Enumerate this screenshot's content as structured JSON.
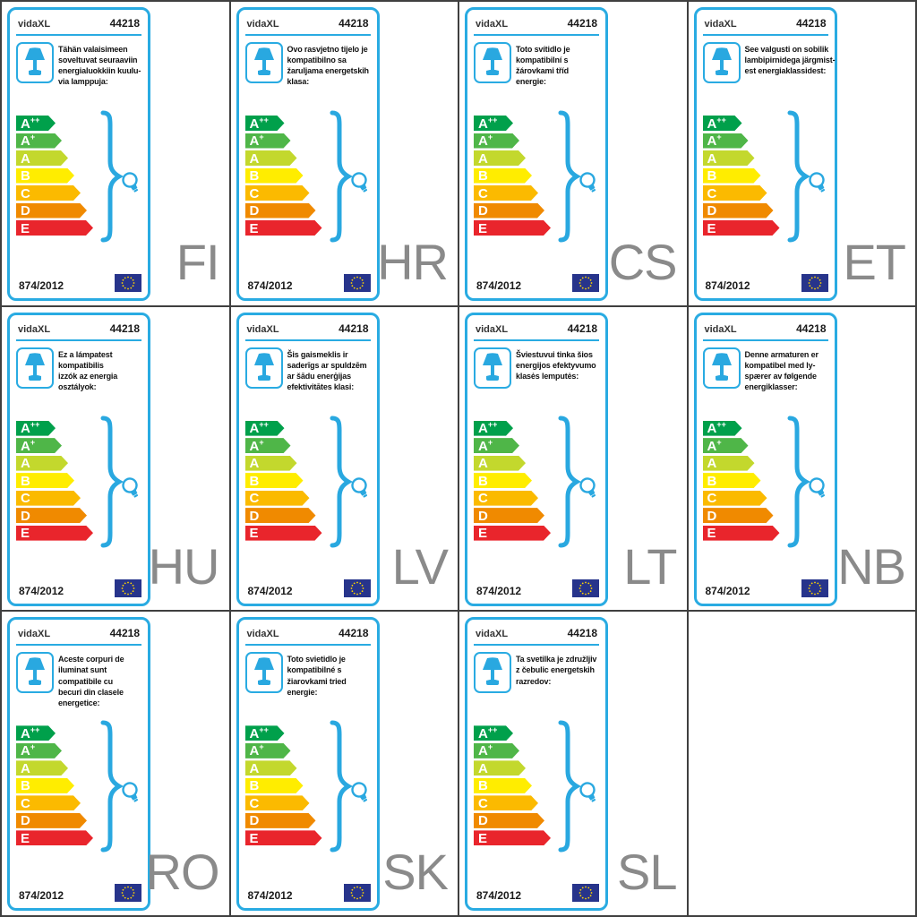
{
  "page": {
    "grid_columns": 4,
    "grid_rows": 3,
    "empty_cells": 1
  },
  "label_template": {
    "brand": "vidaXL",
    "model_number": "44218",
    "regulation": "874/2012",
    "lamp_icon": "table-lamp-icon",
    "bulb_icon": "light-bulb-icon",
    "flag_icon": "eu-flag-icon"
  },
  "energy_scale": {
    "classes": [
      {
        "grade": "A",
        "sup": "++",
        "color": "#00A04B"
      },
      {
        "grade": "A",
        "sup": "+",
        "color": "#4FB648"
      },
      {
        "grade": "A",
        "sup": "",
        "color": "#C3D82D"
      },
      {
        "grade": "B",
        "sup": "",
        "color": "#FFED00"
      },
      {
        "grade": "C",
        "sup": "",
        "color": "#FBBA00"
      },
      {
        "grade": "D",
        "sup": "",
        "color": "#F08A00"
      },
      {
        "grade": "E",
        "sup": "",
        "color": "#E9252C"
      }
    ]
  },
  "labels": [
    {
      "language_code": "FI",
      "description": "Tähän valaisimeen\nsoveltuvat seuraaviin\nenergialuokkiin kuulu-\nvia lamppuja:"
    },
    {
      "language_code": "HR",
      "description": "Ovo rasvjetno tijelo je\nkompatibilno sa\nžaruljama energetskih\nklasa:"
    },
    {
      "language_code": "CS",
      "description": "Toto svítidlo je\nkompatibilní s\nžárovkami tříd\nenergie:"
    },
    {
      "language_code": "ET",
      "description": "See valgusti on sobilik\nlambipirnidega järgmist-\nest energiaklassidest:"
    },
    {
      "language_code": "HU",
      "description": "Ez a lámpatest\nkompatibilis\nizzók az energia\nosztályok:"
    },
    {
      "language_code": "LV",
      "description": "Šis gaismeklis ir\nsaderīgs ar spuldzēm\nar šādu enerģijas\nefektivitātes klasi:"
    },
    {
      "language_code": "LT",
      "description": "Šviestuvui tinka šios\nenergijos efektyvumo\nklasės lemputės:"
    },
    {
      "language_code": "NB",
      "description": "Denne armaturen er\nkompatibel med ly-\nspærer av følgende\nenergiklasser:"
    },
    {
      "language_code": "RO",
      "description": "Aceste corpuri de\niluminat sunt\ncompatibile cu\nbecuri din clasele\nenergetice:"
    },
    {
      "language_code": "SK",
      "description": "Toto svietidlo je\nkompatibilné s\nžiarovkami tried\nenergie:"
    },
    {
      "language_code": "SL",
      "description": "Ta svetilka je združljiv\nz čebulic energetskih\nrazredov:"
    }
  ],
  "colors": {
    "label_border_blue": "#29ABE2",
    "accent_blue": "#29A8E0",
    "grid_line": "#3F3F3F",
    "language_code_gray": "#8A8A8A",
    "eu_flag_blue": "#27348B",
    "eu_star_yellow": "#FFD500",
    "text_dark": "#1A1A1A"
  }
}
